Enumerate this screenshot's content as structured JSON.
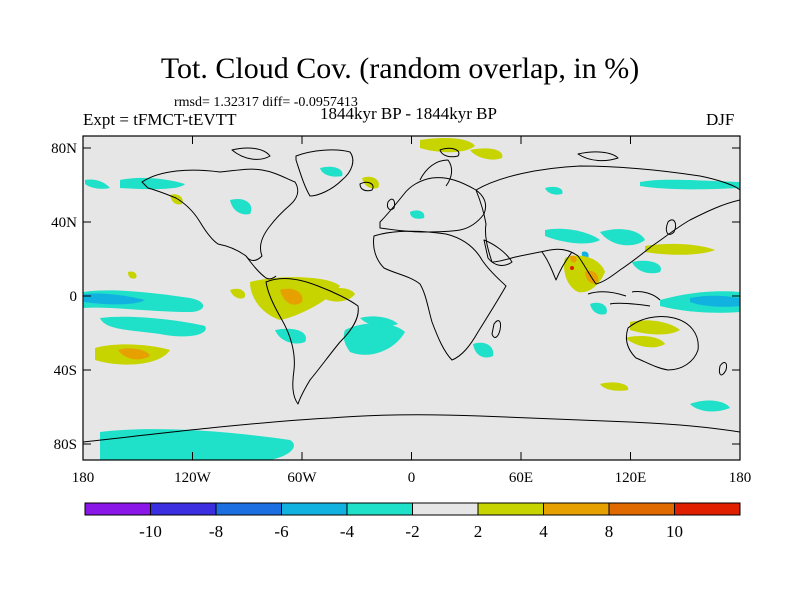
{
  "title": "Tot. Cloud Cov. (random overlap, in %)",
  "stats": "rmsd= 1.32317 diff= -0.0957413",
  "experiment": "Expt = tFMCT-tEVTT",
  "period": "1844kyr BP - 1844kyr BP",
  "season": "DJF",
  "lat_labels": [
    "80N",
    "40N",
    "0",
    "40S",
    "80S"
  ],
  "lon_labels": [
    "180",
    "120W",
    "60W",
    "0",
    "60E",
    "120E",
    "180"
  ],
  "colorbar": {
    "labels": [
      "-10",
      "-8",
      "-6",
      "-4",
      "-2",
      "2",
      "4",
      "8",
      "10"
    ],
    "colors": [
      "#8a16e8",
      "#3a2ee0",
      "#1c6fe0",
      "#12b2e0",
      "#1fe0c8",
      "#e6e6e6",
      "#c8d400",
      "#e6a000",
      "#e06a00",
      "#e01e00"
    ]
  },
  "map": {
    "background": "#e6e6e6",
    "coast_color": "#000000"
  }
}
